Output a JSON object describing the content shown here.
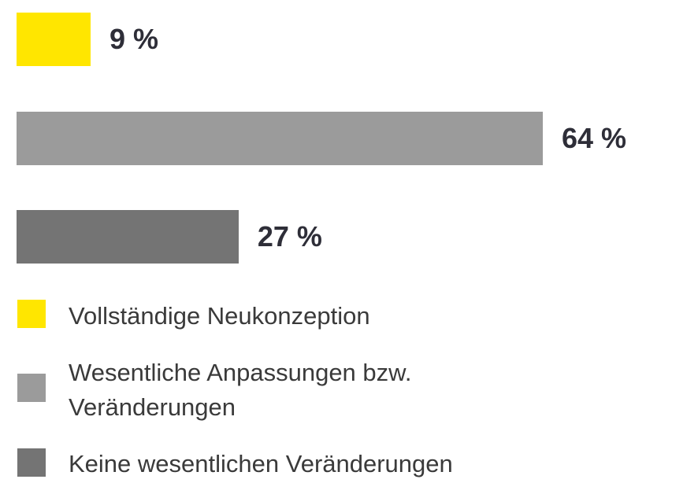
{
  "chart_data": {
    "type": "bar",
    "orientation": "horizontal",
    "categories": [
      "Vollständige Neukonzeption",
      "Wesentliche Anpassungen bzw. Veränderungen",
      "Keine wesentlichen Veränderungen"
    ],
    "values": [
      9,
      64,
      27
    ],
    "value_labels": [
      "9 %",
      "64 %",
      "27 %"
    ],
    "colors": [
      "#ffe600",
      "#9b9b9b",
      "#747474"
    ]
  }
}
